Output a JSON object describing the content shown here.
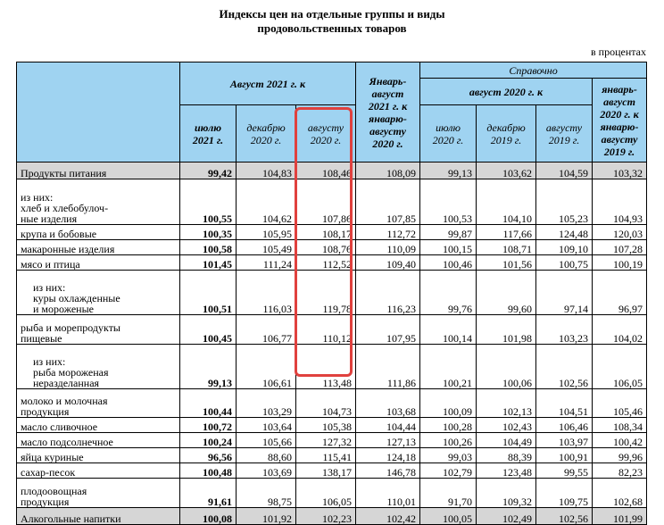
{
  "title_line1": "Индексы цен на отдельные группы и виды",
  "title_line2": "продовольственных товаров",
  "unit": "в процентах",
  "headers": {
    "aug2021_to": "Август 2021 г. к",
    "jan_aug_2021_l1": "Январь-",
    "jan_aug_2021_l2": "август",
    "jan_aug_2021_l3": "2021 г. к",
    "jan_aug_2021_l4": "январю-",
    "jan_aug_2021_l5": "августу",
    "jan_aug_2021_l6": "2020 г.",
    "reference": "Справочно",
    "aug2020_to": "август 2020 г. к",
    "jan_aug_2020_l1": "январь-",
    "jan_aug_2020_l2": "август",
    "jan_aug_2020_l3": "2020 г. к",
    "jan_aug_2020_l4": "январю-",
    "jan_aug_2020_l5": "августу",
    "jan_aug_2020_l6": "2019 г.",
    "sub": [
      {
        "l1": "июлю",
        "l2": "2021 г."
      },
      {
        "l1": "декабрю",
        "l2": "2020 г."
      },
      {
        "l1": "августу",
        "l2": "2020 г."
      },
      {
        "l1": "июлю",
        "l2": "2020 г."
      },
      {
        "l1": "декабрю",
        "l2": "2019 г."
      },
      {
        "l1": "августу",
        "l2": "2019 г."
      }
    ]
  },
  "rows": [
    {
      "name": [
        "Продукты питания"
      ],
      "v": [
        "99,42",
        "104,83",
        "108,46",
        "108,09",
        "99,13",
        "103,62",
        "104,59",
        "103,32"
      ],
      "grey": true
    },
    {
      "name": [
        "из них:",
        "хлеб и хлебобулоч-",
        "ные изделия"
      ],
      "v": [
        "100,55",
        "104,62",
        "107,86",
        "107,85",
        "100,53",
        "104,10",
        "105,23",
        "104,93"
      ]
    },
    {
      "name": [
        "крупа и бобовые"
      ],
      "v": [
        "100,35",
        "105,95",
        "108,17",
        "112,72",
        "99,87",
        "117,66",
        "124,48",
        "120,03"
      ]
    },
    {
      "name": [
        "макаронные изделия"
      ],
      "v": [
        "100,58",
        "105,49",
        "108,76",
        "110,09",
        "100,15",
        "108,71",
        "109,10",
        "107,28"
      ]
    },
    {
      "name": [
        "мясо и птица"
      ],
      "v": [
        "101,45",
        "111,24",
        "112,52",
        "109,40",
        "100,46",
        "101,56",
        "100,75",
        "100,19"
      ]
    },
    {
      "name": [
        "из них:",
        "куры охлажденные",
        "и мороженые"
      ],
      "v": [
        "100,51",
        "116,03",
        "119,78",
        "116,23",
        "99,76",
        "99,60",
        "97,14",
        "96,97"
      ],
      "sub": true
    },
    {
      "name": [
        "рыба и морепродукты",
        "пищевые"
      ],
      "v": [
        "100,45",
        "106,77",
        "110,12",
        "107,95",
        "100,14",
        "101,98",
        "103,23",
        "104,02"
      ]
    },
    {
      "name": [
        "из них:",
        "рыба мороженая",
        "неразделанная"
      ],
      "v": [
        "99,13",
        "106,61",
        "113,48",
        "111,86",
        "100,21",
        "100,06",
        "102,56",
        "106,05"
      ],
      "sub": true
    },
    {
      "name": [
        "молоко и молочная",
        "продукция"
      ],
      "v": [
        "100,44",
        "103,29",
        "104,73",
        "103,68",
        "100,09",
        "102,13",
        "104,51",
        "105,46"
      ]
    },
    {
      "name": [
        "масло сливочное"
      ],
      "v": [
        "100,72",
        "103,64",
        "105,38",
        "104,44",
        "100,28",
        "102,43",
        "106,46",
        "108,34"
      ]
    },
    {
      "name": [
        "масло подсолнечное"
      ],
      "v": [
        "100,24",
        "105,66",
        "127,32",
        "127,13",
        "100,26",
        "104,49",
        "103,97",
        "100,42"
      ]
    },
    {
      "name": [
        "яйца куриные"
      ],
      "v": [
        "96,56",
        "88,60",
        "115,41",
        "124,18",
        "99,03",
        "88,39",
        "100,91",
        "99,96"
      ]
    },
    {
      "name": [
        "сахар-песок"
      ],
      "v": [
        "100,48",
        "103,69",
        "138,17",
        "146,78",
        "102,79",
        "123,48",
        "99,55",
        "82,23"
      ]
    },
    {
      "name": [
        "плодоовощная",
        "продукция"
      ],
      "v": [
        "91,61",
        "98,75",
        "106,05",
        "110,01",
        "91,70",
        "109,32",
        "109,75",
        "102,68"
      ]
    },
    {
      "name": [
        "Алкогольные напитки"
      ],
      "v": [
        "100,08",
        "101,92",
        "102,23",
        "102,42",
        "100,05",
        "102,49",
        "102,56",
        "101,99"
      ],
      "grey": true
    }
  ]
}
